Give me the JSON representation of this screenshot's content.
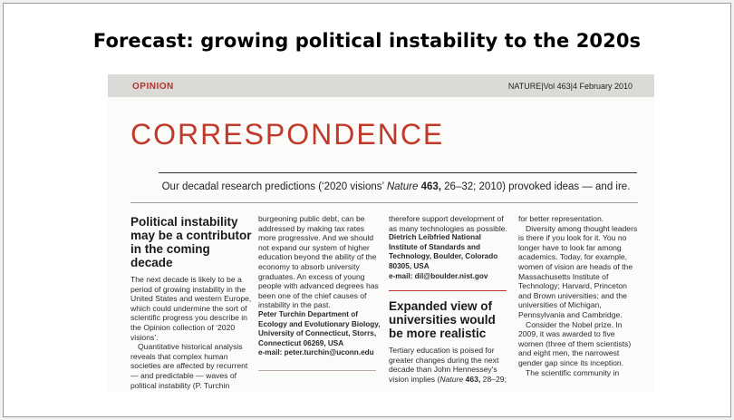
{
  "slide": {
    "title": "Forecast: growing political instability to the 2020s"
  },
  "clipping": {
    "section": "OPINION",
    "issue": "NATURE|Vol 463|4 February 2010",
    "heading": "CORRESPONDENCE",
    "strap_pre": "Our decadal research predictions (‘2020 visions’ ",
    "strap_journal": "Nature",
    "strap_vol": "463,",
    "strap_post": " 26–32; 2010) provoked ideas — and ire."
  },
  "col1": {
    "headline": "Political instability may be a contributor in the coming decade",
    "para1": "The next decade is likely to be a period of growing instability in the United States and western Europe, which could undermine the sort of scientific progress you describe in the Opinion collection of ‘2020 visions’.",
    "para2": "Quantitative historical analysis reveals that complex human societies are affected by recurrent — and predictable — waves of political instability (P. Turchin"
  },
  "col2": {
    "para1": "burgeoning public debt, can be addressed by making tax rates more progressive. And we should not expand our system of higher education beyond the ability of the economy to absorb university graduates. An excess of young people with advanced degrees has been one of the chief causes of instability in the past.",
    "sig_name": "Peter Turchin",
    "sig_rest": " Department of Ecology and Evolutionary Biology, University of Connecticut, Storrs, Connecticut 06269, USA",
    "email": "e-mail: peter.turchin@uconn.edu"
  },
  "col3": {
    "para1": "therefore support development of as many technologies as possible.",
    "sig": "Dietrich Leibfried National Institute of Standards and Technology, Boulder, Colorado 80305, USA",
    "email": "e-mail: dil@boulder.nist.gov",
    "headline": "Expanded view of universities would be more realistic",
    "para2_pre": "Tertiary education is poised for greater changes during the next decade than John Hennessey's vision implies (",
    "para2_journal": "Nature",
    "para2_vol": " 463,",
    "para2_post": " 28–29;"
  },
  "col4": {
    "para1": "for better representation.",
    "para2": "Diversity among thought leaders is there if you look for it. You no longer have to look far among academics. Today, for example, women of vision are heads of the Massachusetts Institute of Technology; Harvard, Princeton and Brown universities; and the universities of Michigan, Pennsylvania and Cambridge.",
    "para3": "Consider the Nobel prize. In 2009, it was awarded to five women (three of them scientists) and eight men, the narrowest gender gap since its inception.",
    "para4": "The scientific community in"
  },
  "colors": {
    "accent": "#c0392b",
    "band": "#dcdad6"
  }
}
